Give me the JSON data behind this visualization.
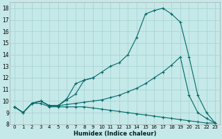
{
  "xlabel": "Humidex (Indice chaleur)",
  "x_values": [
    0,
    1,
    2,
    3,
    4,
    5,
    6,
    7,
    8,
    9,
    10,
    11,
    12,
    13,
    14,
    15,
    16,
    17,
    18,
    19,
    20,
    21,
    22,
    23
  ],
  "line_main": [
    9.5,
    9.0,
    9.8,
    10.0,
    9.6,
    9.6,
    10.2,
    11.5,
    11.8,
    12.0,
    12.5,
    13.0,
    13.3,
    14.0,
    15.5,
    17.5,
    17.8,
    18.0,
    17.5,
    16.8,
    13.8,
    10.5,
    9.0,
    8.1
  ],
  "line_diag": [
    9.5,
    9.0,
    9.8,
    10.0,
    9.6,
    9.6,
    9.7,
    9.8,
    9.9,
    10.0,
    10.1,
    10.3,
    10.5,
    10.8,
    11.1,
    11.5,
    12.0,
    12.5,
    13.1,
    13.8,
    10.5,
    9.0,
    8.5,
    8.1
  ],
  "line_flat": [
    9.5,
    9.0,
    9.8,
    9.8,
    9.5,
    9.5,
    9.5,
    9.5,
    9.5,
    9.4,
    9.3,
    9.2,
    9.1,
    9.0,
    8.9,
    8.8,
    8.7,
    8.6,
    8.5,
    8.4,
    8.3,
    8.2,
    8.1,
    8.1
  ],
  "line_short": [
    9.5,
    9.0,
    9.8,
    10.0,
    9.6,
    9.6,
    10.1,
    10.6,
    11.8,
    12.0
  ],
  "x_short": [
    0,
    1,
    2,
    3,
    4,
    5,
    6,
    7,
    8,
    9
  ],
  "bg_color": "#c5e8e8",
  "grid_color": "#aad4d4",
  "line_color": "#006868",
  "ylim": [
    8,
    18.5
  ],
  "xlim": [
    -0.5,
    23.5
  ],
  "yticks": [
    8,
    9,
    10,
    11,
    12,
    13,
    14,
    15,
    16,
    17,
    18
  ],
  "xticks": [
    0,
    1,
    2,
    3,
    4,
    5,
    6,
    7,
    8,
    9,
    10,
    11,
    12,
    13,
    14,
    15,
    16,
    17,
    18,
    19,
    20,
    21,
    22,
    23
  ]
}
